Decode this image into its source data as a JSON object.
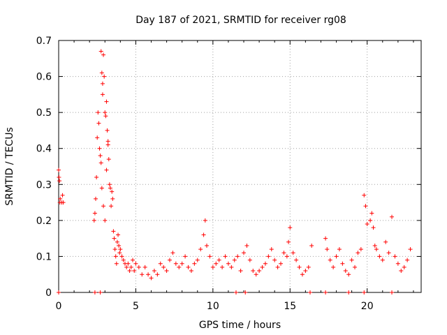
{
  "chart_data": {
    "type": "scatter",
    "title": "Day 187 of 2021, SRMTID for receiver rg08",
    "xlabel": "GPS time / hours",
    "ylabel": "SRMTID / TECUs",
    "xlim": [
      0,
      23.5
    ],
    "ylim": [
      0,
      0.7
    ],
    "xticks": [
      0,
      5,
      10,
      15,
      20
    ],
    "yticks": [
      0,
      0.1,
      0.2,
      0.3,
      0.4,
      0.5,
      0.6,
      0.7
    ],
    "xtick_labels": [
      "0",
      "5",
      "10",
      "15",
      "20"
    ],
    "ytick_labels": [
      "0",
      "0.1",
      "0.2",
      "0.3",
      "0.4",
      "0.5",
      "0.6",
      "0.7"
    ],
    "grid": true,
    "marker": "+",
    "series": [
      {
        "name": "SRMTID",
        "color": "#ff0000",
        "x": [
          0.0,
          0.02,
          0.05,
          0.08,
          0.1,
          0.2,
          0.25,
          0.3,
          2.3,
          2.35,
          2.4,
          2.45,
          2.5,
          2.55,
          2.6,
          2.65,
          2.7,
          2.75,
          2.8,
          2.85,
          2.9,
          2.95,
          3.0,
          3.05,
          3.1,
          3.15,
          3.2,
          3.25,
          3.3,
          3.35,
          3.4,
          3.45,
          3.5,
          3.55,
          3.6,
          3.65,
          3.7,
          3.75,
          3.8,
          3.85,
          3.9,
          3.95,
          4.0,
          2.75,
          2.8,
          2.85,
          2.9,
          3.0,
          3.1,
          3.2,
          4.1,
          4.2,
          4.3,
          4.4,
          4.5,
          4.6,
          4.7,
          4.8,
          4.9,
          5.0,
          5.2,
          5.4,
          5.6,
          5.8,
          6.0,
          6.2,
          6.4,
          6.6,
          6.8,
          7.0,
          7.2,
          7.4,
          7.6,
          7.8,
          8.0,
          8.2,
          8.4,
          8.6,
          8.8,
          9.0,
          9.2,
          9.4,
          9.5,
          9.6,
          9.8,
          10.0,
          10.2,
          10.4,
          10.6,
          10.8,
          11.0,
          11.2,
          11.4,
          11.6,
          11.8,
          12.0,
          12.2,
          12.4,
          12.6,
          12.8,
          13.0,
          13.2,
          13.4,
          13.6,
          13.8,
          14.0,
          14.2,
          14.4,
          14.6,
          14.8,
          14.9,
          15.0,
          15.2,
          15.4,
          15.6,
          15.8,
          16.0,
          16.2,
          16.4,
          17.3,
          17.4,
          17.6,
          17.8,
          18.0,
          18.2,
          18.4,
          18.6,
          18.8,
          19.0,
          19.2,
          19.4,
          19.6,
          19.8,
          19.9,
          20.0,
          20.2,
          20.3,
          20.4,
          20.5,
          20.6,
          20.8,
          21.0,
          21.2,
          21.4,
          21.6,
          21.8,
          22.0,
          22.2,
          22.4,
          22.6,
          22.8,
          0.0,
          2.35,
          2.7,
          11.5,
          12.1,
          16.3,
          17.3,
          18.8,
          19.8,
          21.6
        ],
        "y": [
          0.34,
          0.32,
          0.31,
          0.25,
          0.26,
          0.25,
          0.27,
          0.25,
          0.2,
          0.22,
          0.26,
          0.32,
          0.43,
          0.5,
          0.47,
          0.4,
          0.38,
          0.36,
          0.29,
          0.58,
          0.66,
          0.6,
          0.5,
          0.49,
          0.53,
          0.45,
          0.41,
          0.37,
          0.3,
          0.29,
          0.24,
          0.28,
          0.26,
          0.17,
          0.15,
          0.12,
          0.1,
          0.08,
          0.14,
          0.16,
          0.13,
          0.11,
          0.12,
          0.67,
          0.61,
          0.55,
          0.24,
          0.2,
          0.34,
          0.42,
          0.1,
          0.09,
          0.08,
          0.07,
          0.08,
          0.06,
          0.07,
          0.09,
          0.06,
          0.08,
          0.07,
          0.05,
          0.07,
          0.05,
          0.04,
          0.06,
          0.05,
          0.08,
          0.07,
          0.06,
          0.09,
          0.11,
          0.08,
          0.07,
          0.08,
          0.1,
          0.07,
          0.06,
          0.08,
          0.09,
          0.12,
          0.16,
          0.2,
          0.13,
          0.1,
          0.07,
          0.08,
          0.09,
          0.07,
          0.1,
          0.08,
          0.07,
          0.09,
          0.1,
          0.06,
          0.11,
          0.13,
          0.09,
          0.06,
          0.05,
          0.06,
          0.07,
          0.08,
          0.1,
          0.12,
          0.09,
          0.07,
          0.08,
          0.11,
          0.1,
          0.14,
          0.18,
          0.11,
          0.09,
          0.07,
          0.05,
          0.06,
          0.07,
          0.13,
          0.15,
          0.12,
          0.09,
          0.07,
          0.1,
          0.12,
          0.08,
          0.06,
          0.05,
          0.09,
          0.07,
          0.11,
          0.12,
          0.27,
          0.24,
          0.19,
          0.2,
          0.22,
          0.18,
          0.13,
          0.12,
          0.1,
          0.09,
          0.14,
          0.11,
          0.21,
          0.1,
          0.08,
          0.06,
          0.07,
          0.09,
          0.12,
          0.0,
          0.0,
          0.0,
          0.0,
          0.0,
          0.0,
          0.0,
          0.0,
          0.0,
          0.0
        ]
      }
    ]
  }
}
